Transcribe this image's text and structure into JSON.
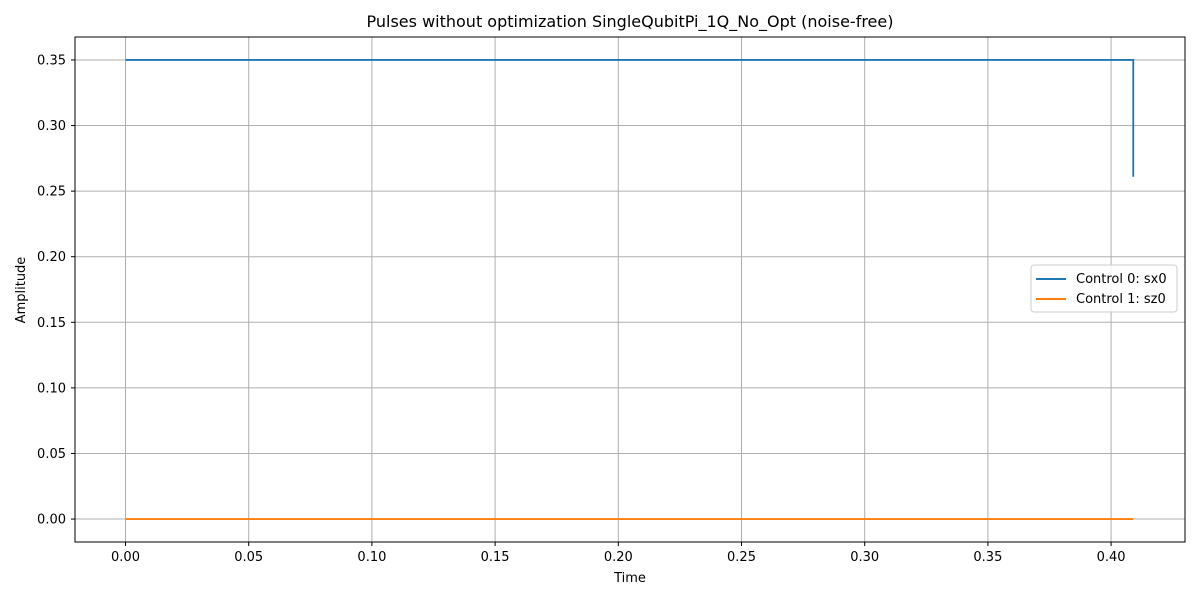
{
  "chart_data": {
    "type": "line",
    "title": "Pulses without optimization SingleQubitPi_1Q_No_Opt (noise-free)",
    "xlabel": "Time",
    "ylabel": "Amplitude",
    "xlim": [
      -0.0205,
      0.43
    ],
    "ylim": [
      -0.0175,
      0.3675
    ],
    "xticks": [
      0.0,
      0.05,
      0.1,
      0.15,
      0.2,
      0.25,
      0.3,
      0.35,
      0.4
    ],
    "xtick_labels": [
      "0.00",
      "0.05",
      "0.10",
      "0.15",
      "0.20",
      "0.25",
      "0.30",
      "0.35",
      "0.40"
    ],
    "yticks": [
      0.0,
      0.05,
      0.1,
      0.15,
      0.2,
      0.25,
      0.3,
      0.35
    ],
    "ytick_labels": [
      "0.00",
      "0.05",
      "0.10",
      "0.15",
      "0.20",
      "0.25",
      "0.30",
      "0.35"
    ],
    "grid": true,
    "legend_position": "center-right",
    "series": [
      {
        "name": "Control 0: sx0",
        "color": "#1f77b4",
        "points": [
          [
            0.0,
            0.35
          ],
          [
            0.409,
            0.35
          ],
          [
            0.409,
            0.261
          ]
        ]
      },
      {
        "name": "Control 1: sz0",
        "color": "#ff7f0e",
        "points": [
          [
            0.0,
            0.0
          ],
          [
            0.409,
            0.0
          ]
        ]
      }
    ]
  }
}
